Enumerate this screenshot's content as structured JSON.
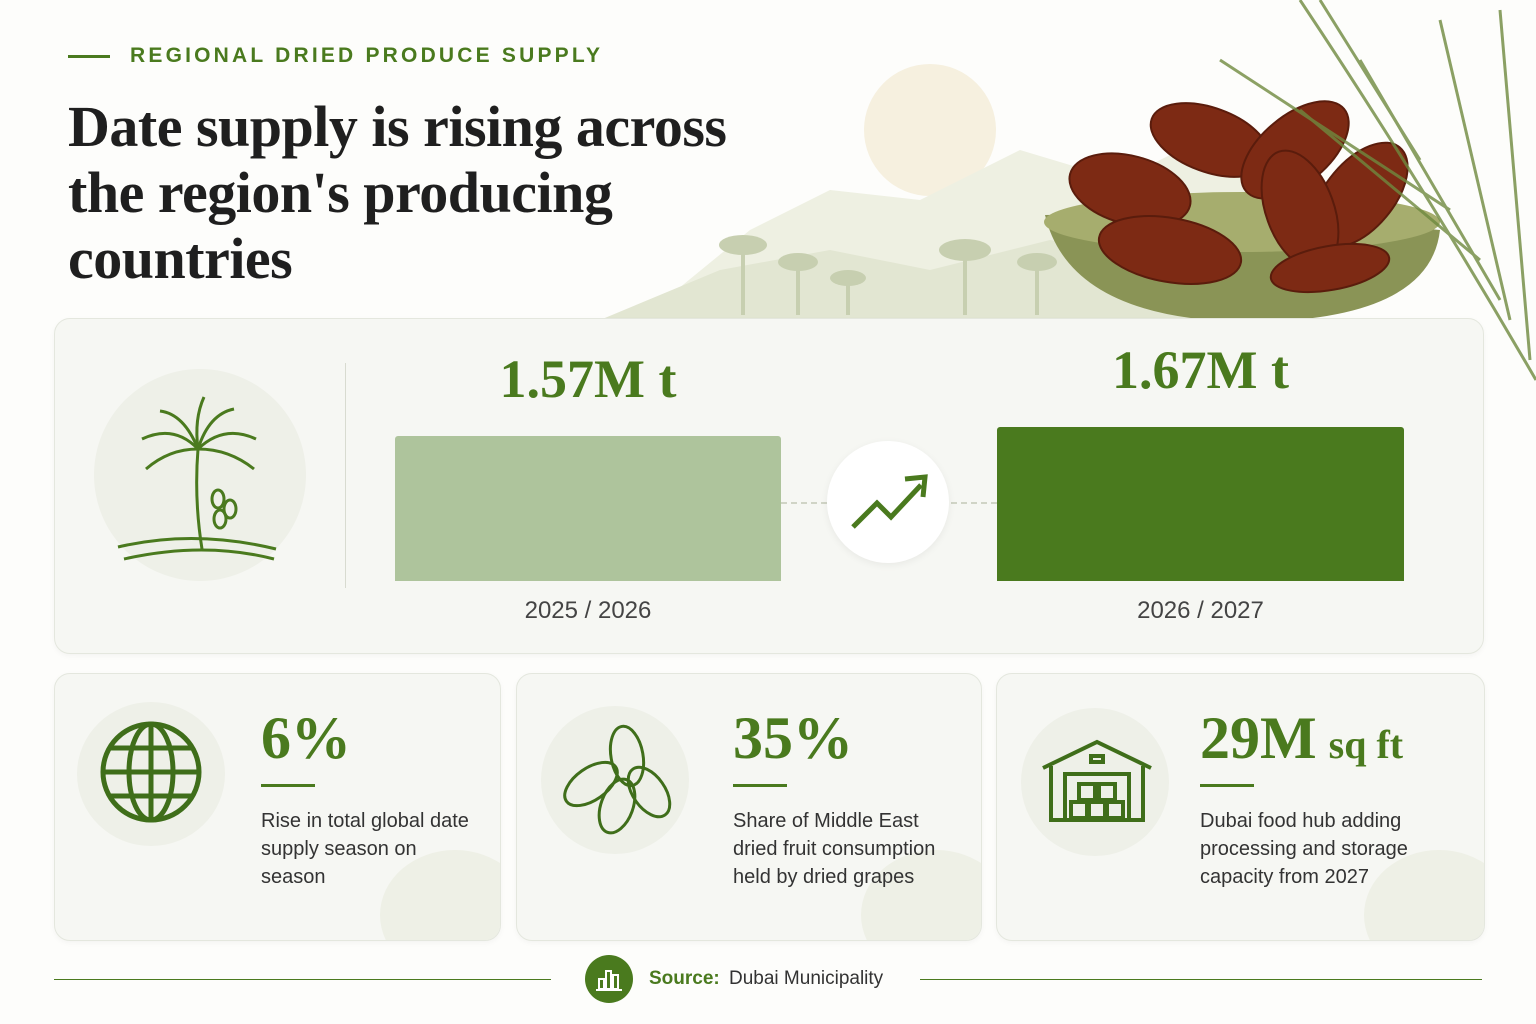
{
  "header": {
    "eyebrow": "REGIONAL DRIED PRODUCE SUPPLY",
    "title": "Date supply is rising across the region's producing countries"
  },
  "chart_data": {
    "type": "bar",
    "categories": [
      "2025 / 2026",
      "2026 / 2027"
    ],
    "values": [
      1.57,
      1.67
    ],
    "value_labels": [
      "1.57M t",
      "1.67M t"
    ],
    "colors": [
      "#aec49c",
      "#4a7a1e"
    ]
  },
  "stats": [
    {
      "value": "6%",
      "description": "Rise in total global date supply season on season"
    },
    {
      "value": "35%",
      "description": "Share of Middle East dried fruit consumption held by dried grapes"
    },
    {
      "value": "29M",
      "unit": "sq ft",
      "description": "Dubai food hub adding processing and storage capacity from 2027"
    }
  ],
  "source": {
    "label": "Source:",
    "text": "Dubai Municipality"
  }
}
